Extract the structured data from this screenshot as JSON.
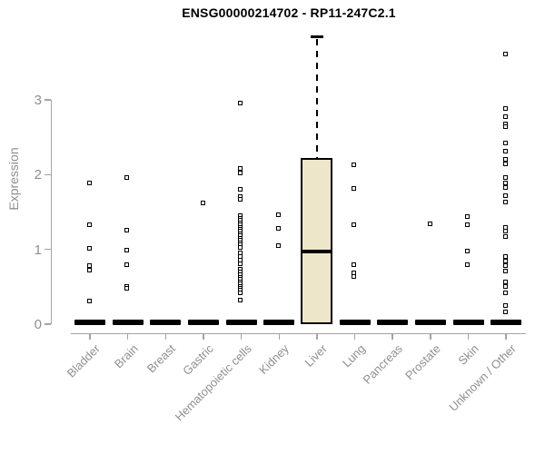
{
  "chart_data": {
    "type": "boxplot-scatter",
    "title": "ENSG00000214702 - RP11-247C2.1",
    "ylabel": "Expression",
    "xlabel": "",
    "ylim": [
      0,
      3.9
    ],
    "yticks": [
      0,
      1,
      2,
      3
    ],
    "grid": false,
    "legend": "none",
    "style": {
      "background": "#ffffff",
      "box_fill": "#ede6c9",
      "axis_color": "#a3a3a3",
      "text_color": "#8f8f8f",
      "ink": "#000000"
    },
    "categories": [
      {
        "label": "Bladder",
        "zero_bar": true,
        "points": [
          1.88,
          1.32,
          1.01,
          0.78,
          0.71,
          0.3
        ]
      },
      {
        "label": "Brain",
        "zero_bar": true,
        "points": [
          1.95,
          1.25,
          0.98,
          0.79,
          0.5,
          0.47
        ]
      },
      {
        "label": "Breast",
        "zero_bar": true,
        "points": []
      },
      {
        "label": "Gastric",
        "zero_bar": true,
        "points": [
          1.61
        ]
      },
      {
        "label": "Hematopoietic cells",
        "zero_bar": true,
        "points": [
          2.95,
          2.07,
          2.01,
          1.8,
          1.7,
          1.66,
          1.44,
          1.41,
          1.38,
          1.35,
          1.32,
          1.29,
          1.26,
          1.23,
          1.2,
          1.17,
          1.14,
          1.11,
          1.08,
          1.05,
          1.02,
          0.94,
          0.9,
          0.85,
          0.8,
          0.73,
          0.69,
          0.65,
          0.62,
          0.59,
          0.56,
          0.53,
          0.5,
          0.47,
          0.44,
          0.41,
          0.31
        ]
      },
      {
        "label": "Kidney",
        "zero_bar": true,
        "points": [
          1.46,
          1.27,
          1.04
        ]
      },
      {
        "label": "Liver",
        "zero_bar": false,
        "box": {
          "whisker_high": 3.84,
          "q3": 2.22,
          "median": 0.97,
          "q1": 0,
          "whisker_low": 0
        },
        "points": []
      },
      {
        "label": "Lung",
        "zero_bar": true,
        "points": [
          2.12,
          1.81,
          1.32,
          0.79,
          0.68,
          0.63
        ]
      },
      {
        "label": "Pancreas",
        "zero_bar": true,
        "points": []
      },
      {
        "label": "Prostate",
        "zero_bar": true,
        "points": [
          1.33
        ]
      },
      {
        "label": "Skin",
        "zero_bar": true,
        "points": [
          1.43,
          1.32,
          0.97,
          0.79
        ]
      },
      {
        "label": "Unknown / Other",
        "zero_bar": true,
        "points": [
          3.6,
          2.87,
          2.77,
          2.67,
          2.63,
          2.42,
          2.31,
          2.19,
          2.13,
          1.95,
          1.88,
          1.82,
          1.71,
          1.62,
          1.29,
          1.23,
          1.16,
          0.9,
          0.84,
          0.77,
          0.7,
          0.56,
          0.49,
          0.41,
          0.24,
          0.16
        ]
      }
    ]
  }
}
